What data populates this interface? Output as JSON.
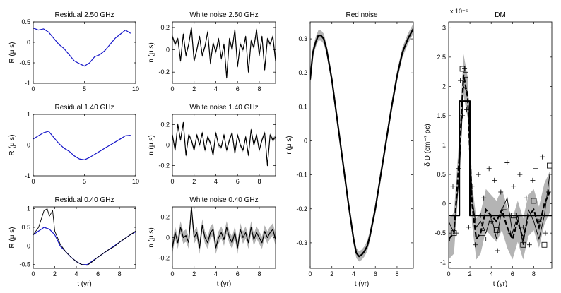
{
  "colors": {
    "blue": "#1515c8",
    "black": "#000000",
    "band": "#b4b4b4"
  },
  "chart_data": [
    {
      "id": "residual-2.50",
      "type": "line",
      "title": "Residual 2.50 GHz",
      "ylabel": "R (μ s)",
      "xlabel": "",
      "xlim": [
        0,
        10
      ],
      "ylim": [
        -1,
        0.5
      ],
      "xticks": [
        0,
        5,
        10
      ],
      "yticks": [
        -1,
        -0.5,
        0,
        0.5
      ],
      "series": [
        {
          "name": "residual",
          "color": "#1515c8",
          "x": [
            0.0,
            0.5,
            1.0,
            1.5,
            2.0,
            2.5,
            3.0,
            3.5,
            4.0,
            4.5,
            5.0,
            5.5,
            6.0,
            6.5,
            7.0,
            7.5,
            8.0,
            8.5,
            9.0,
            9.5
          ],
          "values": [
            0.35,
            0.3,
            0.33,
            0.25,
            0.1,
            -0.05,
            -0.15,
            -0.3,
            -0.45,
            -0.52,
            -0.58,
            -0.5,
            -0.35,
            -0.3,
            -0.2,
            -0.05,
            0.1,
            0.2,
            0.3,
            0.22
          ]
        }
      ]
    },
    {
      "id": "residual-1.40",
      "type": "line",
      "title": "Residual 1.40 GHz",
      "ylabel": "R (μ s)",
      "xlabel": "",
      "xlim": [
        0,
        10
      ],
      "ylim": [
        -1,
        1
      ],
      "xticks": [
        0,
        5,
        10
      ],
      "yticks": [
        -1,
        0,
        1
      ],
      "series": [
        {
          "name": "residual",
          "color": "#1515c8",
          "x": [
            0.0,
            0.5,
            1.0,
            1.5,
            2.0,
            2.5,
            3.0,
            3.5,
            4.0,
            4.5,
            5.0,
            5.5,
            6.0,
            6.5,
            7.0,
            7.5,
            8.0,
            8.5,
            9.0,
            9.5
          ],
          "values": [
            0.2,
            0.3,
            0.4,
            0.45,
            0.25,
            0.05,
            -0.1,
            -0.2,
            -0.35,
            -0.45,
            -0.48,
            -0.4,
            -0.3,
            -0.2,
            -0.1,
            0.0,
            0.1,
            0.2,
            0.3,
            0.32
          ]
        }
      ]
    },
    {
      "id": "residual-0.40",
      "type": "line",
      "title": "Residual 0.40 GHz",
      "ylabel": "R (μ s)",
      "xlabel": "t (yr)",
      "xlim": [
        0,
        9.5
      ],
      "ylim": [
        -0.6,
        1.05
      ],
      "xticks": [
        0,
        2,
        4,
        6,
        8
      ],
      "yticks": [
        -0.5,
        0,
        0.5,
        1
      ],
      "series": [
        {
          "name": "residual",
          "color": "#1515c8",
          "x": [
            0.0,
            0.5,
            1.0,
            1.5,
            2.0,
            2.5,
            3.0,
            3.5,
            4.0,
            4.5,
            5.0,
            5.5,
            6.0,
            6.5,
            7.0,
            7.5,
            8.0,
            8.5,
            9.0,
            9.5
          ],
          "values": [
            0.3,
            0.4,
            0.5,
            0.45,
            0.3,
            0.0,
            -0.15,
            -0.3,
            -0.42,
            -0.5,
            -0.5,
            -0.4,
            -0.3,
            -0.2,
            -0.1,
            0.0,
            0.1,
            0.2,
            0.3,
            0.38
          ]
        },
        {
          "name": "model",
          "color": "#000000",
          "x": [
            0.0,
            0.5,
            1.0,
            1.3,
            1.5,
            1.8,
            2.0,
            2.5,
            3.0,
            3.5,
            4.0,
            4.5,
            5.0,
            5.5,
            6.0,
            6.5,
            7.0,
            7.5,
            8.0,
            8.5,
            9.0,
            9.5
          ],
          "values": [
            0.3,
            0.5,
            0.95,
            1.0,
            0.8,
            0.95,
            0.4,
            0.05,
            -0.15,
            -0.3,
            -0.42,
            -0.5,
            -0.52,
            -0.42,
            -0.3,
            -0.2,
            -0.1,
            -0.02,
            0.1,
            0.2,
            0.3,
            0.4
          ]
        }
      ]
    },
    {
      "id": "white-noise-2.50",
      "type": "line",
      "title": "White noise 2.50 GHz",
      "ylabel": "n (μ s)",
      "xlabel": "",
      "xlim": [
        0,
        9.5
      ],
      "ylim": [
        -0.3,
        0.25
      ],
      "xticks": [
        0,
        2,
        4,
        6,
        8
      ],
      "yticks": [
        -0.2,
        0,
        0.2
      ],
      "band_halfwidth": 0.02,
      "series": [
        {
          "name": "white noise",
          "color": "#000000",
          "x": [
            0.0,
            0.25,
            0.5,
            0.75,
            1.0,
            1.25,
            1.5,
            1.75,
            2.0,
            2.25,
            2.5,
            2.75,
            3.0,
            3.25,
            3.5,
            3.75,
            4.0,
            4.25,
            4.5,
            4.75,
            5.0,
            5.25,
            5.5,
            5.75,
            6.0,
            6.25,
            6.5,
            6.75,
            7.0,
            7.25,
            7.5,
            7.75,
            8.0,
            8.25,
            8.5,
            8.75,
            9.0,
            9.25,
            9.5
          ],
          "values": [
            0.12,
            0.05,
            0.1,
            -0.1,
            0.14,
            -0.05,
            0.05,
            0.2,
            -0.1,
            0.0,
            0.12,
            -0.05,
            0.03,
            0.16,
            -0.12,
            0.06,
            -0.02,
            0.1,
            -0.08,
            0.05,
            -0.25,
            0.1,
            0.0,
            0.18,
            -0.15,
            0.05,
            0.0,
            0.12,
            -0.2,
            0.08,
            0.02,
            0.18,
            -0.05,
            0.12,
            -0.18,
            0.1,
            0.05,
            0.12,
            -0.1
          ]
        }
      ]
    },
    {
      "id": "white-noise-1.40",
      "type": "line",
      "title": "White noise 1.40 GHz",
      "ylabel": "n (μ s)",
      "xlabel": "",
      "xlim": [
        0,
        9.5
      ],
      "ylim": [
        -0.3,
        0.3
      ],
      "xticks": [
        0,
        2,
        4,
        6,
        8
      ],
      "yticks": [
        -0.2,
        0,
        0.2
      ],
      "band_halfwidth": 0.02,
      "series": [
        {
          "name": "white noise",
          "color": "#000000",
          "x": [
            0.0,
            0.25,
            0.5,
            0.75,
            1.0,
            1.25,
            1.5,
            1.75,
            2.0,
            2.25,
            2.5,
            2.75,
            3.0,
            3.25,
            3.5,
            3.75,
            4.0,
            4.25,
            4.5,
            4.75,
            5.0,
            5.25,
            5.5,
            5.75,
            6.0,
            6.25,
            6.5,
            6.75,
            7.0,
            7.25,
            7.5,
            7.75,
            8.0,
            8.25,
            8.5,
            8.75,
            9.0,
            9.25,
            9.5
          ],
          "values": [
            0.1,
            -0.05,
            0.2,
            0.05,
            0.22,
            -0.1,
            0.1,
            0.05,
            -0.05,
            0.1,
            0.0,
            0.12,
            -0.05,
            0.08,
            0.02,
            -0.1,
            0.12,
            0.0,
            -0.02,
            0.1,
            -0.05,
            0.05,
            0.12,
            -0.08,
            0.1,
            0.0,
            -0.05,
            0.08,
            -0.1,
            0.15,
            0.0,
            0.1,
            -0.05,
            0.05,
            0.12,
            -0.2,
            0.1,
            0.05,
            0.08
          ]
        }
      ]
    },
    {
      "id": "white-noise-0.40",
      "type": "line",
      "title": "White noise 0.40 GHz",
      "ylabel": "n (μ s)",
      "xlabel": "t (yr)",
      "xlim": [
        0,
        9.5
      ],
      "ylim": [
        -0.3,
        0.3
      ],
      "xticks": [
        0,
        2,
        4,
        6,
        8
      ],
      "yticks": [
        -0.2,
        0,
        0.2
      ],
      "band_halfwidth": 0.06,
      "series": [
        {
          "name": "white noise",
          "color": "#000000",
          "x": [
            0.0,
            0.25,
            0.5,
            0.75,
            1.0,
            1.25,
            1.5,
            1.75,
            2.0,
            2.25,
            2.5,
            2.75,
            3.0,
            3.25,
            3.5,
            3.75,
            4.0,
            4.25,
            4.5,
            4.75,
            5.0,
            5.25,
            5.5,
            5.75,
            6.0,
            6.25,
            6.5,
            6.75,
            7.0,
            7.25,
            7.5,
            7.75,
            8.0,
            8.25,
            8.5,
            8.75,
            9.0,
            9.25,
            9.5
          ],
          "values": [
            -0.1,
            0.05,
            -0.05,
            0.1,
            0.0,
            0.02,
            -0.05,
            0.3,
            0.0,
            0.05,
            -0.1,
            0.12,
            0.0,
            -0.05,
            0.05,
            0.08,
            -0.1,
            0.0,
            0.05,
            -0.02,
            0.1,
            0.0,
            -0.05,
            0.05,
            -0.1,
            0.08,
            0.0,
            0.05,
            -0.05,
            0.1,
            -0.02,
            0.05,
            0.0,
            -0.05,
            0.06,
            0.0,
            0.05,
            0.08,
            -0.02
          ]
        }
      ]
    },
    {
      "id": "red-noise",
      "type": "line",
      "title": "Red noise",
      "ylabel": "r (μ s)",
      "xlabel": "t (yr)",
      "xlim": [
        0,
        9.5
      ],
      "ylim": [
        -0.375,
        0.35
      ],
      "xticks": [
        0,
        2,
        4,
        6,
        8
      ],
      "yticks": [
        -0.3,
        -0.2,
        -0.1,
        0,
        0.1,
        0.2,
        0.3
      ],
      "band_halfwidth": 0.015,
      "series": [
        {
          "name": "red noise",
          "color": "#000000",
          "x": [
            0.0,
            0.25,
            0.5,
            0.75,
            1.0,
            1.25,
            1.5,
            2.0,
            2.5,
            3.0,
            3.5,
            4.0,
            4.25,
            4.5,
            4.75,
            5.0,
            5.25,
            5.5,
            6.0,
            6.5,
            7.0,
            7.5,
            8.0,
            8.5,
            9.0,
            9.5
          ],
          "values": [
            0.18,
            0.26,
            0.29,
            0.31,
            0.31,
            0.3,
            0.27,
            0.18,
            0.06,
            -0.06,
            -0.18,
            -0.29,
            -0.33,
            -0.34,
            -0.335,
            -0.325,
            -0.31,
            -0.28,
            -0.2,
            -0.1,
            0.0,
            0.1,
            0.19,
            0.26,
            0.3,
            0.33
          ]
        }
      ]
    },
    {
      "id": "dm",
      "type": "scatter",
      "title": "DM",
      "ylabel": "δ D (cm⁻³ pc)",
      "xlabel": "t (yr)",
      "multiplier": "x 10⁻⁵",
      "xlim": [
        0,
        9.7
      ],
      "ylim": [
        -1.1,
        3.1
      ],
      "xticks": [
        0,
        2,
        4,
        6,
        8
      ],
      "yticks": [
        -1,
        -0.5,
        0,
        0.5,
        1,
        1.5,
        2,
        2.5,
        3
      ],
      "series": [
        {
          "name": "step model",
          "color": "#000000",
          "x": [
            0.0,
            1.0,
            1.0,
            2.0,
            2.0,
            9.7
          ],
          "values": [
            -0.2,
            -0.2,
            1.75,
            1.75,
            -0.2,
            -0.2
          ]
        },
        {
          "name": "dashed fit",
          "color": "#000000",
          "x": [
            0.0,
            0.5,
            1.0,
            1.4,
            1.8,
            2.2,
            2.6,
            3.0,
            3.5,
            4.0,
            4.5,
            5.0,
            5.5,
            6.0,
            6.5,
            7.0,
            7.5,
            8.0,
            8.5,
            9.0,
            9.5
          ],
          "values": [
            -0.6,
            -0.5,
            0.8,
            2.2,
            1.8,
            0.0,
            -0.6,
            -0.5,
            -0.1,
            -0.2,
            -0.3,
            -0.1,
            -0.4,
            -0.6,
            -0.3,
            -0.6,
            -0.2,
            -0.1,
            -0.4,
            0.0,
            0.2
          ]
        },
        {
          "name": "thin fit",
          "color": "#000000",
          "x": [
            0.0,
            0.5,
            1.0,
            1.4,
            1.8,
            2.2,
            2.6,
            3.0,
            3.5,
            4.0,
            4.5,
            5.0,
            5.5,
            6.0,
            6.5,
            7.0,
            7.5,
            8.0,
            8.5,
            9.0,
            9.5
          ],
          "values": [
            -0.3,
            -0.5,
            0.5,
            2.0,
            1.9,
            0.1,
            -0.4,
            -0.3,
            -0.5,
            -0.2,
            -0.6,
            -0.1,
            0.1,
            -0.5,
            -0.2,
            -0.7,
            -0.1,
            -0.3,
            -0.6,
            -0.2,
            0.5
          ]
        },
        {
          "name": "plus markers",
          "color": "#000000",
          "x": [
            0.1,
            0.4,
            0.7,
            0.9,
            1.1,
            1.3,
            1.5,
            1.7,
            1.9,
            2.2,
            2.5,
            2.8,
            3.0,
            3.3,
            3.5,
            3.8,
            4.0,
            4.3,
            4.6,
            4.9,
            5.2,
            5.5,
            5.8,
            6.1,
            6.4,
            6.7,
            7.0,
            7.3,
            7.6,
            7.9,
            8.2,
            8.5,
            8.8,
            9.1,
            9.4
          ],
          "values": [
            -0.6,
            0.3,
            -0.5,
            0.6,
            2.1,
            1.5,
            2.3,
            1.6,
            -0.4,
            0.3,
            -0.7,
            0.5,
            -0.2,
            0.1,
            -0.6,
            0.6,
            -0.3,
            0.4,
            -0.8,
            0.2,
            -0.1,
            0.7,
            -0.5,
            0.3,
            -0.2,
            0.5,
            -0.4,
            0.1,
            -0.7,
            0.4,
            0.6,
            -0.3,
            0.8,
            -0.5,
            0.2
          ]
        },
        {
          "name": "square markers",
          "color": "#000000",
          "x": [
            0.0,
            0.5,
            1.3,
            1.6,
            3.2,
            4.5,
            6.1,
            7.0,
            8.0,
            9.0,
            9.5
          ],
          "values": [
            -1.05,
            -0.5,
            2.3,
            2.2,
            -0.5,
            -0.45,
            -0.2,
            -0.7,
            0.05,
            -0.7,
            0.65
          ]
        }
      ]
    }
  ]
}
